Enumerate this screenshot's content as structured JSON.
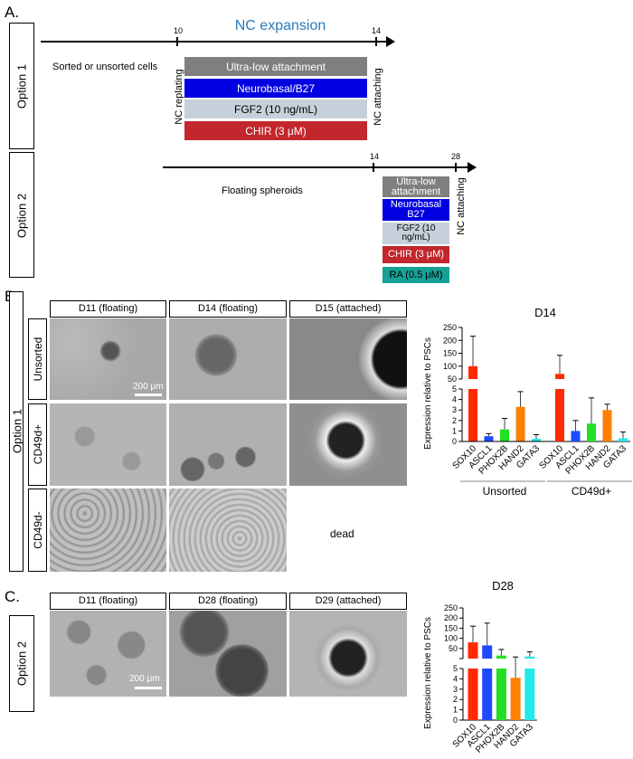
{
  "panel_a": {
    "label": "A.",
    "title": "NC expansion",
    "option1": {
      "label": "Option 1",
      "start_day": "10",
      "end_day": "14",
      "cells_text": "Sorted or unsorted cells",
      "start_event": "NC replating",
      "end_event": "NC attaching",
      "conditions": [
        "Ultra-low attachment",
        "Neurobasal/B27",
        "FGF2 (10 ng/mL)",
        "CHIR (3 μM)"
      ]
    },
    "option2": {
      "label": "Option 2",
      "start_day": "14",
      "end_day": "28",
      "cells_text": "Floating spheroids",
      "end_event": "NC attaching",
      "conditions": [
        "Ultra-low attachment",
        "Neurobasal B27",
        "FGF2 (10 ng/mL)",
        "CHIR (3 μM)",
        "RA (0.5 μM)"
      ]
    },
    "colors": {
      "ultra_low": "#7f7f7f",
      "neurobasal": "#0000e0",
      "fgf2": "#c5d0da",
      "chir": "#c1272d",
      "ra": "#16a096"
    }
  },
  "panel_b": {
    "label": "B.",
    "option_label": "Option 1",
    "columns": [
      "D11 (floating)",
      "D14 (floating)",
      "D15 (attached)"
    ],
    "rows": [
      "Unsorted",
      "CD49d+",
      "CD49d-"
    ],
    "scale_bar": "200 μm",
    "dead_text": "dead"
  },
  "panel_c": {
    "label": "C.",
    "option_label": "Option 2",
    "columns": [
      "D11 (floating)",
      "D28 (floating)",
      "D29 (attached)"
    ],
    "scale_bar": "200 μm"
  },
  "chart_data": [
    {
      "type": "bar",
      "title": "D14",
      "ylabel": "Expression relative to PSCs",
      "broken_axis": {
        "upper": [
          50,
          250
        ],
        "upper_ticks": [
          50,
          100,
          150,
          200,
          250
        ],
        "lower": [
          0,
          5
        ],
        "lower_ticks": [
          0,
          1,
          2,
          3,
          4,
          5
        ]
      },
      "categories": [
        "SOX10",
        "ASCL1",
        "PHOX2B",
        "HAND2",
        "GATA3"
      ],
      "colors": [
        "#ff2a00",
        "#1c4bff",
        "#22e022",
        "#ff7f00",
        "#22e8e8"
      ],
      "groups": [
        {
          "name": "Unsorted",
          "values": [
            100,
            0.5,
            1.15,
            3.3,
            0.25
          ],
          "error_top": [
            216,
            0.75,
            2.2,
            4.75,
            0.65
          ]
        },
        {
          "name": "CD49d+",
          "values": [
            70,
            1.0,
            1.7,
            3.0,
            0.3
          ],
          "error_top": [
            142,
            2.0,
            4.15,
            3.55,
            0.9
          ]
        }
      ]
    },
    {
      "type": "bar",
      "title": "D28",
      "ylabel": "Expression relative to PSCs",
      "broken_axis": {
        "upper": [
          0,
          250
        ],
        "upper_ticks": [
          50,
          100,
          150,
          200,
          250
        ],
        "lower": [
          0,
          5
        ],
        "lower_ticks": [
          0,
          1,
          2,
          3,
          4,
          5
        ]
      },
      "categories": [
        "SOX10",
        "ASCL1",
        "PHOX2B",
        "HAND2",
        "GATA3"
      ],
      "colors": [
        "#ff2a00",
        "#1c4bff",
        "#22e022",
        "#ff7f00",
        "#22e8e8"
      ],
      "groups": [
        {
          "name": "",
          "values": [
            80,
            65,
            15,
            4.1,
            10
          ],
          "error_top": [
            160,
            175,
            45,
            8,
            33
          ]
        }
      ]
    }
  ]
}
